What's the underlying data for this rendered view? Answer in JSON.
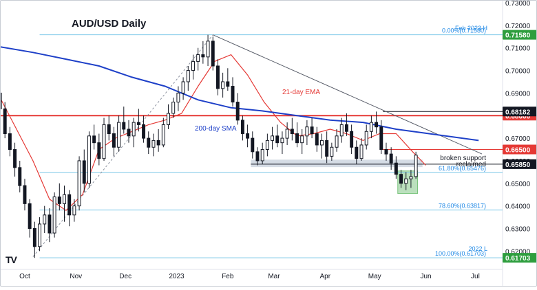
{
  "header": {
    "title": "AUD/USD Daily"
  },
  "chart_data": {
    "type": "candlestick",
    "title": "AUD/USD Daily",
    "x_ticks": [
      "Oct",
      "Nov",
      "Dec",
      "2023",
      "Feb",
      "Mar",
      "Apr",
      "May",
      "Jun",
      "Jul"
    ],
    "x_tick_days": [
      15,
      46,
      76,
      107,
      138,
      166,
      197,
      227,
      258,
      288
    ],
    "ylim": [
      0.6125,
      0.73
    ],
    "y_ticks": [
      0.73,
      0.72,
      0.71,
      0.7,
      0.69,
      0.67,
      0.66,
      0.65,
      0.64,
      0.63,
      0.62
    ],
    "x_range_days": [
      0,
      297
    ],
    "series": [
      {
        "name": "21-day EMA",
        "color": "#e53935",
        "points": [
          [
            0,
            0.688
          ],
          [
            10,
            0.674
          ],
          [
            20,
            0.66
          ],
          [
            30,
            0.643
          ],
          [
            40,
            0.638
          ],
          [
            50,
            0.645
          ],
          [
            60,
            0.665
          ],
          [
            70,
            0.67
          ],
          [
            80,
            0.673
          ],
          [
            90,
            0.676
          ],
          [
            100,
            0.678
          ],
          [
            110,
            0.681
          ],
          [
            120,
            0.693
          ],
          [
            130,
            0.704
          ],
          [
            140,
            0.707
          ],
          [
            150,
            0.698
          ],
          [
            160,
            0.686
          ],
          [
            170,
            0.677
          ],
          [
            180,
            0.671
          ],
          [
            190,
            0.672
          ],
          [
            200,
            0.674
          ],
          [
            210,
            0.672
          ],
          [
            220,
            0.669
          ],
          [
            230,
            0.672
          ],
          [
            240,
            0.672
          ],
          [
            250,
            0.664
          ],
          [
            258,
            0.658
          ]
        ]
      },
      {
        "name": "200-day SMA",
        "color": "#1e40c8",
        "points": [
          [
            0,
            0.7105
          ],
          [
            20,
            0.708
          ],
          [
            40,
            0.705
          ],
          [
            60,
            0.702
          ],
          [
            80,
            0.697
          ],
          [
            100,
            0.693
          ],
          [
            120,
            0.687
          ],
          [
            140,
            0.6835
          ],
          [
            160,
            0.682
          ],
          [
            180,
            0.68
          ],
          [
            200,
            0.678
          ],
          [
            220,
            0.677
          ],
          [
            240,
            0.674
          ],
          [
            260,
            0.672
          ],
          [
            290,
            0.669
          ]
        ]
      }
    ],
    "candles": [
      [
        0,
        0.69,
        0.692,
        0.681,
        0.683
      ],
      [
        3,
        0.683,
        0.686,
        0.67,
        0.672
      ],
      [
        6,
        0.672,
        0.675,
        0.662,
        0.665
      ],
      [
        9,
        0.665,
        0.668,
        0.653,
        0.657
      ],
      [
        12,
        0.657,
        0.66,
        0.646,
        0.649
      ],
      [
        15,
        0.649,
        0.652,
        0.638,
        0.641
      ],
      [
        18,
        0.641,
        0.643,
        0.626,
        0.63
      ],
      [
        21,
        0.63,
        0.633,
        0.617,
        0.622
      ],
      [
        24,
        0.622,
        0.635,
        0.62,
        0.632
      ],
      [
        27,
        0.632,
        0.64,
        0.628,
        0.636
      ],
      [
        30,
        0.636,
        0.639,
        0.624,
        0.628
      ],
      [
        33,
        0.628,
        0.646,
        0.626,
        0.644
      ],
      [
        36,
        0.644,
        0.65,
        0.638,
        0.641
      ],
      [
        39,
        0.641,
        0.649,
        0.633,
        0.645
      ],
      [
        42,
        0.645,
        0.647,
        0.631,
        0.636
      ],
      [
        45,
        0.636,
        0.643,
        0.633,
        0.64
      ],
      [
        48,
        0.64,
        0.662,
        0.638,
        0.66
      ],
      [
        51,
        0.66,
        0.665,
        0.646,
        0.65
      ],
      [
        54,
        0.65,
        0.673,
        0.648,
        0.671
      ],
      [
        57,
        0.671,
        0.676,
        0.665,
        0.668
      ],
      [
        60,
        0.668,
        0.672,
        0.658,
        0.661
      ],
      [
        63,
        0.661,
        0.679,
        0.66,
        0.676
      ],
      [
        66,
        0.676,
        0.68,
        0.669,
        0.672
      ],
      [
        69,
        0.672,
        0.675,
        0.662,
        0.666
      ],
      [
        72,
        0.666,
        0.68,
        0.664,
        0.677
      ],
      [
        75,
        0.677,
        0.684,
        0.672,
        0.674
      ],
      [
        78,
        0.674,
        0.678,
        0.668,
        0.671
      ],
      [
        81,
        0.671,
        0.679,
        0.666,
        0.677
      ],
      [
        84,
        0.677,
        0.683,
        0.673,
        0.676
      ],
      [
        87,
        0.676,
        0.68,
        0.668,
        0.67
      ],
      [
        90,
        0.67,
        0.673,
        0.663,
        0.666
      ],
      [
        93,
        0.666,
        0.672,
        0.662,
        0.669
      ],
      [
        96,
        0.669,
        0.674,
        0.664,
        0.667
      ],
      [
        99,
        0.667,
        0.679,
        0.666,
        0.676
      ],
      [
        102,
        0.676,
        0.685,
        0.674,
        0.681
      ],
      [
        105,
        0.681,
        0.688,
        0.679,
        0.686
      ],
      [
        108,
        0.686,
        0.693,
        0.682,
        0.69
      ],
      [
        111,
        0.69,
        0.697,
        0.687,
        0.695
      ],
      [
        114,
        0.695,
        0.702,
        0.691,
        0.7
      ],
      [
        117,
        0.7,
        0.707,
        0.696,
        0.704
      ],
      [
        120,
        0.704,
        0.71,
        0.7,
        0.707
      ],
      [
        123,
        0.707,
        0.713,
        0.703,
        0.706
      ],
      [
        126,
        0.706,
        0.7158,
        0.702,
        0.713
      ],
      [
        129,
        0.713,
        0.715,
        0.7,
        0.702
      ],
      [
        132,
        0.702,
        0.705,
        0.689,
        0.692
      ],
      [
        135,
        0.692,
        0.699,
        0.688,
        0.695
      ],
      [
        138,
        0.695,
        0.701,
        0.691,
        0.693
      ],
      [
        141,
        0.693,
        0.697,
        0.684,
        0.686
      ],
      [
        144,
        0.686,
        0.69,
        0.676,
        0.678
      ],
      [
        147,
        0.678,
        0.68,
        0.669,
        0.672
      ],
      [
        150,
        0.672,
        0.676,
        0.666,
        0.67
      ],
      [
        153,
        0.67,
        0.673,
        0.661,
        0.664
      ],
      [
        156,
        0.664,
        0.666,
        0.658,
        0.66
      ],
      [
        159,
        0.66,
        0.668,
        0.6585,
        0.665
      ],
      [
        162,
        0.665,
        0.672,
        0.662,
        0.669
      ],
      [
        165,
        0.669,
        0.675,
        0.665,
        0.671
      ],
      [
        168,
        0.671,
        0.676,
        0.666,
        0.668
      ],
      [
        171,
        0.668,
        0.673,
        0.663,
        0.67
      ],
      [
        174,
        0.67,
        0.677,
        0.667,
        0.674
      ],
      [
        177,
        0.674,
        0.679,
        0.669,
        0.672
      ],
      [
        180,
        0.672,
        0.677,
        0.666,
        0.668
      ],
      [
        183,
        0.668,
        0.674,
        0.663,
        0.671
      ],
      [
        186,
        0.671,
        0.678,
        0.667,
        0.675
      ],
      [
        189,
        0.675,
        0.679,
        0.67,
        0.672
      ],
      [
        192,
        0.672,
        0.675,
        0.664,
        0.667
      ],
      [
        195,
        0.667,
        0.672,
        0.661,
        0.669
      ],
      [
        198,
        0.669,
        0.673,
        0.659,
        0.662
      ],
      [
        201,
        0.662,
        0.668,
        0.66,
        0.666
      ],
      [
        204,
        0.666,
        0.674,
        0.664,
        0.671
      ],
      [
        207,
        0.671,
        0.679,
        0.668,
        0.676
      ],
      [
        210,
        0.676,
        0.681,
        0.671,
        0.673
      ],
      [
        213,
        0.673,
        0.676,
        0.663,
        0.666
      ],
      [
        216,
        0.666,
        0.669,
        0.6585,
        0.661
      ],
      [
        219,
        0.661,
        0.67,
        0.66,
        0.667
      ],
      [
        222,
        0.667,
        0.676,
        0.665,
        0.673
      ],
      [
        225,
        0.673,
        0.68,
        0.67,
        0.677
      ],
      [
        228,
        0.677,
        0.6818,
        0.672,
        0.675
      ],
      [
        231,
        0.675,
        0.678,
        0.663,
        0.665
      ],
      [
        234,
        0.665,
        0.668,
        0.66,
        0.663
      ],
      [
        237,
        0.663,
        0.666,
        0.656,
        0.659
      ],
      [
        240,
        0.659,
        0.662,
        0.652,
        0.654
      ],
      [
        243,
        0.654,
        0.656,
        0.648,
        0.65
      ],
      [
        246,
        0.65,
        0.655,
        0.647,
        0.652
      ],
      [
        249,
        0.652,
        0.656,
        0.648,
        0.653
      ],
      [
        252,
        0.653,
        0.664,
        0.652,
        0.6625
      ]
    ],
    "levels": [
      {
        "label": "0.68000",
        "value": 0.68,
        "color": "#e53935"
      },
      {
        "label": "0.66500",
        "value": 0.665,
        "color": "#e53935"
      },
      {
        "label": "0.65850",
        "value": 0.6585,
        "color": "#131722"
      },
      {
        "label": "0.68182",
        "value": 0.68182,
        "color": "#131722"
      },
      {
        "label": "0.71580",
        "value": 0.7158,
        "color": "#2e9e3e"
      },
      {
        "label": "0.61703",
        "value": 0.61703,
        "color": "#2e9e3e"
      }
    ],
    "fib_levels": [
      {
        "label": "0.00%(0.71580)",
        "value": 0.7158
      },
      {
        "label": "61.80%(0.65476)",
        "value": 0.65476
      },
      {
        "label": "78.60%(0.63817)",
        "value": 0.63817
      },
      {
        "label": "100.00%(0.61703)",
        "value": 0.61703
      }
    ],
    "annotations": {
      "ema": "21-day EMA",
      "sma": "200-day SMA",
      "feb_high": "Feb 2023 H",
      "low_2022": "2022 L",
      "broken_support": "broken support",
      "reclaimed": "reclaimed"
    },
    "colors": {
      "up": "#131722",
      "down": "#131722",
      "fib": "#7ac7e8",
      "support_band": "#b2bfd0",
      "box": "#4caf50"
    }
  }
}
